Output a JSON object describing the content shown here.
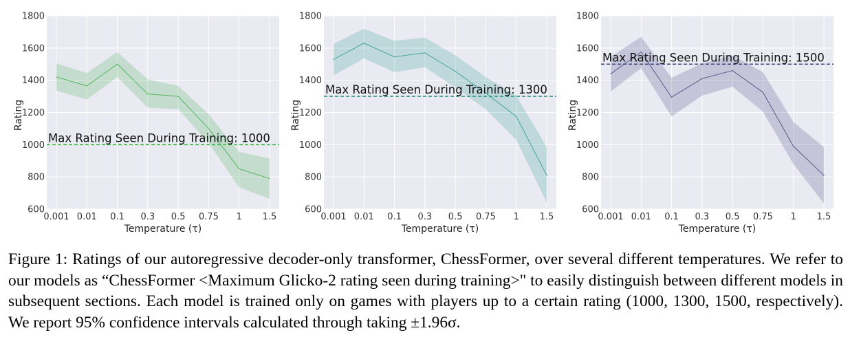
{
  "chart_data": [
    {
      "type": "line",
      "categories": [
        "0.001",
        "0.01",
        "0.1",
        "0.3",
        "0.5",
        "0.75",
        "1",
        "1.5"
      ],
      "xlabel": "Temperature (τ)",
      "ylabel": "Rating",
      "ylim": [
        600,
        1800
      ],
      "yticks": [
        600,
        800,
        1000,
        1200,
        1400,
        1600,
        1800
      ],
      "grid": true,
      "color": "#3fae49",
      "series": [
        {
          "values": [
            1420,
            1365,
            1500,
            1315,
            1300,
            1100,
            850,
            790
          ],
          "lower": [
            1335,
            1280,
            1420,
            1230,
            1220,
            1010,
            735,
            665
          ],
          "upper": [
            1505,
            1445,
            1575,
            1405,
            1365,
            1190,
            955,
            915
          ]
        }
      ],
      "reference_line": {
        "value": 1000,
        "label": "Max Rating Seen During Training: 1000"
      }
    },
    {
      "type": "line",
      "categories": [
        "0.001",
        "0.01",
        "0.1",
        "0.3",
        "0.5",
        "0.75",
        "1",
        "1.5"
      ],
      "xlabel": "Temperature (τ)",
      "ylabel": "Rating",
      "ylim": [
        600,
        1800
      ],
      "yticks": [
        600,
        800,
        1000,
        1200,
        1400,
        1600,
        1800
      ],
      "grid": true,
      "color": "#2a9a8c",
      "series": [
        {
          "values": [
            1530,
            1630,
            1545,
            1570,
            1455,
            1320,
            1175,
            810
          ],
          "lower": [
            1430,
            1535,
            1450,
            1480,
            1355,
            1220,
            1030,
            640
          ],
          "upper": [
            1625,
            1720,
            1645,
            1665,
            1555,
            1420,
            1305,
            985
          ]
        }
      ],
      "reference_line": {
        "value": 1300,
        "label": "Max Rating Seen During Training: 1300"
      }
    },
    {
      "type": "line",
      "categories": [
        "0.001",
        "0.01",
        "0.1",
        "0.3",
        "0.5",
        "0.75",
        "1",
        "1.5"
      ],
      "xlabel": "Temperature (τ)",
      "ylabel": "Rating",
      "ylim": [
        600,
        1800
      ],
      "yticks": [
        600,
        800,
        1000,
        1200,
        1400,
        1600,
        1800
      ],
      "grid": true,
      "color": "#40457a",
      "series": [
        {
          "values": [
            1440,
            1575,
            1295,
            1410,
            1460,
            1325,
            990,
            810
          ],
          "lower": [
            1330,
            1475,
            1175,
            1305,
            1360,
            1205,
            880,
            635
          ],
          "upper": [
            1545,
            1670,
            1415,
            1505,
            1555,
            1450,
            1140,
            985
          ]
        }
      ],
      "reference_line": {
        "value": 1500,
        "label": "Max Rating Seen During Training: 1500"
      }
    }
  ],
  "caption": {
    "text": "Figure 1: Ratings of our autoregressive decoder-only transformer, ChessFormer, over several different temperatures. We refer to our models as “ChessFormer <Maximum Glicko-2 rating seen during training>\" to easily distinguish between different models in subsequent sections. Each model is trained only on games with players up to a certain rating (1000, 1300, 1500, respectively). We report 95% confidence intervals calculated through taking ±1.96σ."
  }
}
